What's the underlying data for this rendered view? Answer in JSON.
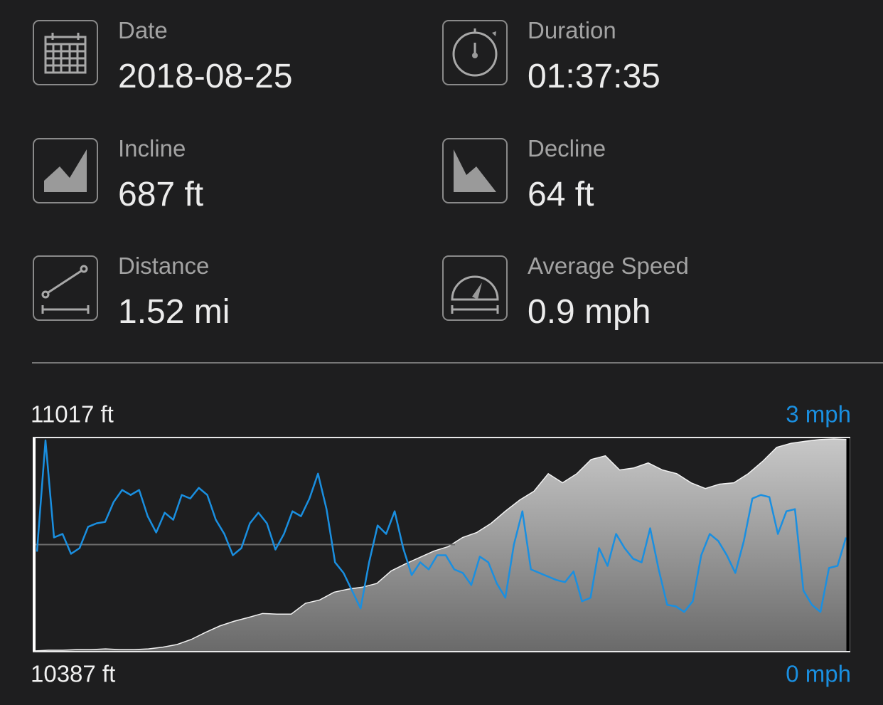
{
  "stats": [
    {
      "label": "Date",
      "value": "2018-08-25"
    },
    {
      "label": "Duration",
      "value": "01:37:35"
    },
    {
      "label": "Incline",
      "value": "687 ft"
    },
    {
      "label": "Decline",
      "value": "64 ft"
    },
    {
      "label": "Distance",
      "value": "1.52 mi"
    },
    {
      "label": "Average Speed",
      "value": "0.9 mph"
    }
  ],
  "chart_data": {
    "type": "area",
    "ylim": [
      10387,
      11017
    ],
    "yticks": [
      {
        "value": 10387,
        "label": "10387 ft"
      },
      {
        "value": 11017,
        "label": "11017 ft"
      }
    ],
    "y2lim": [
      0,
      3
    ],
    "y2ticks": [
      {
        "value": 0,
        "label": "0 mph"
      },
      {
        "value": 3,
        "label": "3 mph"
      }
    ],
    "series": [
      {
        "type": "area",
        "color": "#c8c8c8",
        "values": [
          10387,
          10389,
          10389,
          10391,
          10391,
          10393,
          10391,
          10391,
          10393,
          10398,
          10406,
          10421,
          10442,
          10461,
          10475,
          10486,
          10498,
          10496,
          10496,
          10528,
          10538,
          10561,
          10570,
          10576,
          10587,
          10624,
          10645,
          10664,
          10683,
          10696,
          10723,
          10738,
          10765,
          10801,
          10834,
          10860,
          10912,
          10885,
          10912,
          10954,
          10965,
          10923,
          10929,
          10944,
          10923,
          10912,
          10885,
          10868,
          10881,
          10885,
          10912,
          10948,
          10990,
          11002,
          11008,
          11013,
          11015,
          11013
        ]
      },
      {
        "type": "line",
        "axis": "y2",
        "color": "#1a8fe0",
        "values": [
          1.4,
          2.97,
          1.6,
          1.65,
          1.37,
          1.45,
          1.75,
          1.8,
          1.82,
          2.1,
          2.27,
          2.2,
          2.27,
          1.9,
          1.67,
          1.95,
          1.85,
          2.2,
          2.15,
          2.3,
          2.2,
          1.85,
          1.65,
          1.35,
          1.45,
          1.8,
          1.95,
          1.8,
          1.43,
          1.65,
          1.97,
          1.9,
          2.15,
          2.5,
          2.0,
          1.25,
          1.1,
          0.85,
          0.6,
          1.25,
          1.77,
          1.65,
          1.97,
          1.45,
          1.07,
          1.25,
          1.15,
          1.35,
          1.35,
          1.15,
          1.1,
          0.93,
          1.33,
          1.25,
          0.95,
          0.75,
          1.5,
          1.97,
          1.15,
          1.1,
          1.05,
          1.0,
          0.97,
          1.12,
          0.7,
          0.75,
          1.45,
          1.2,
          1.65,
          1.45,
          1.3,
          1.25,
          1.73,
          1.15,
          0.65,
          0.63,
          0.55,
          0.7,
          1.35,
          1.65,
          1.55,
          1.35,
          1.1,
          1.55,
          2.15,
          2.2,
          2.17,
          1.65,
          1.97,
          2.0,
          0.85,
          0.65,
          0.55,
          1.17,
          1.2,
          1.6
        ]
      }
    ]
  }
}
